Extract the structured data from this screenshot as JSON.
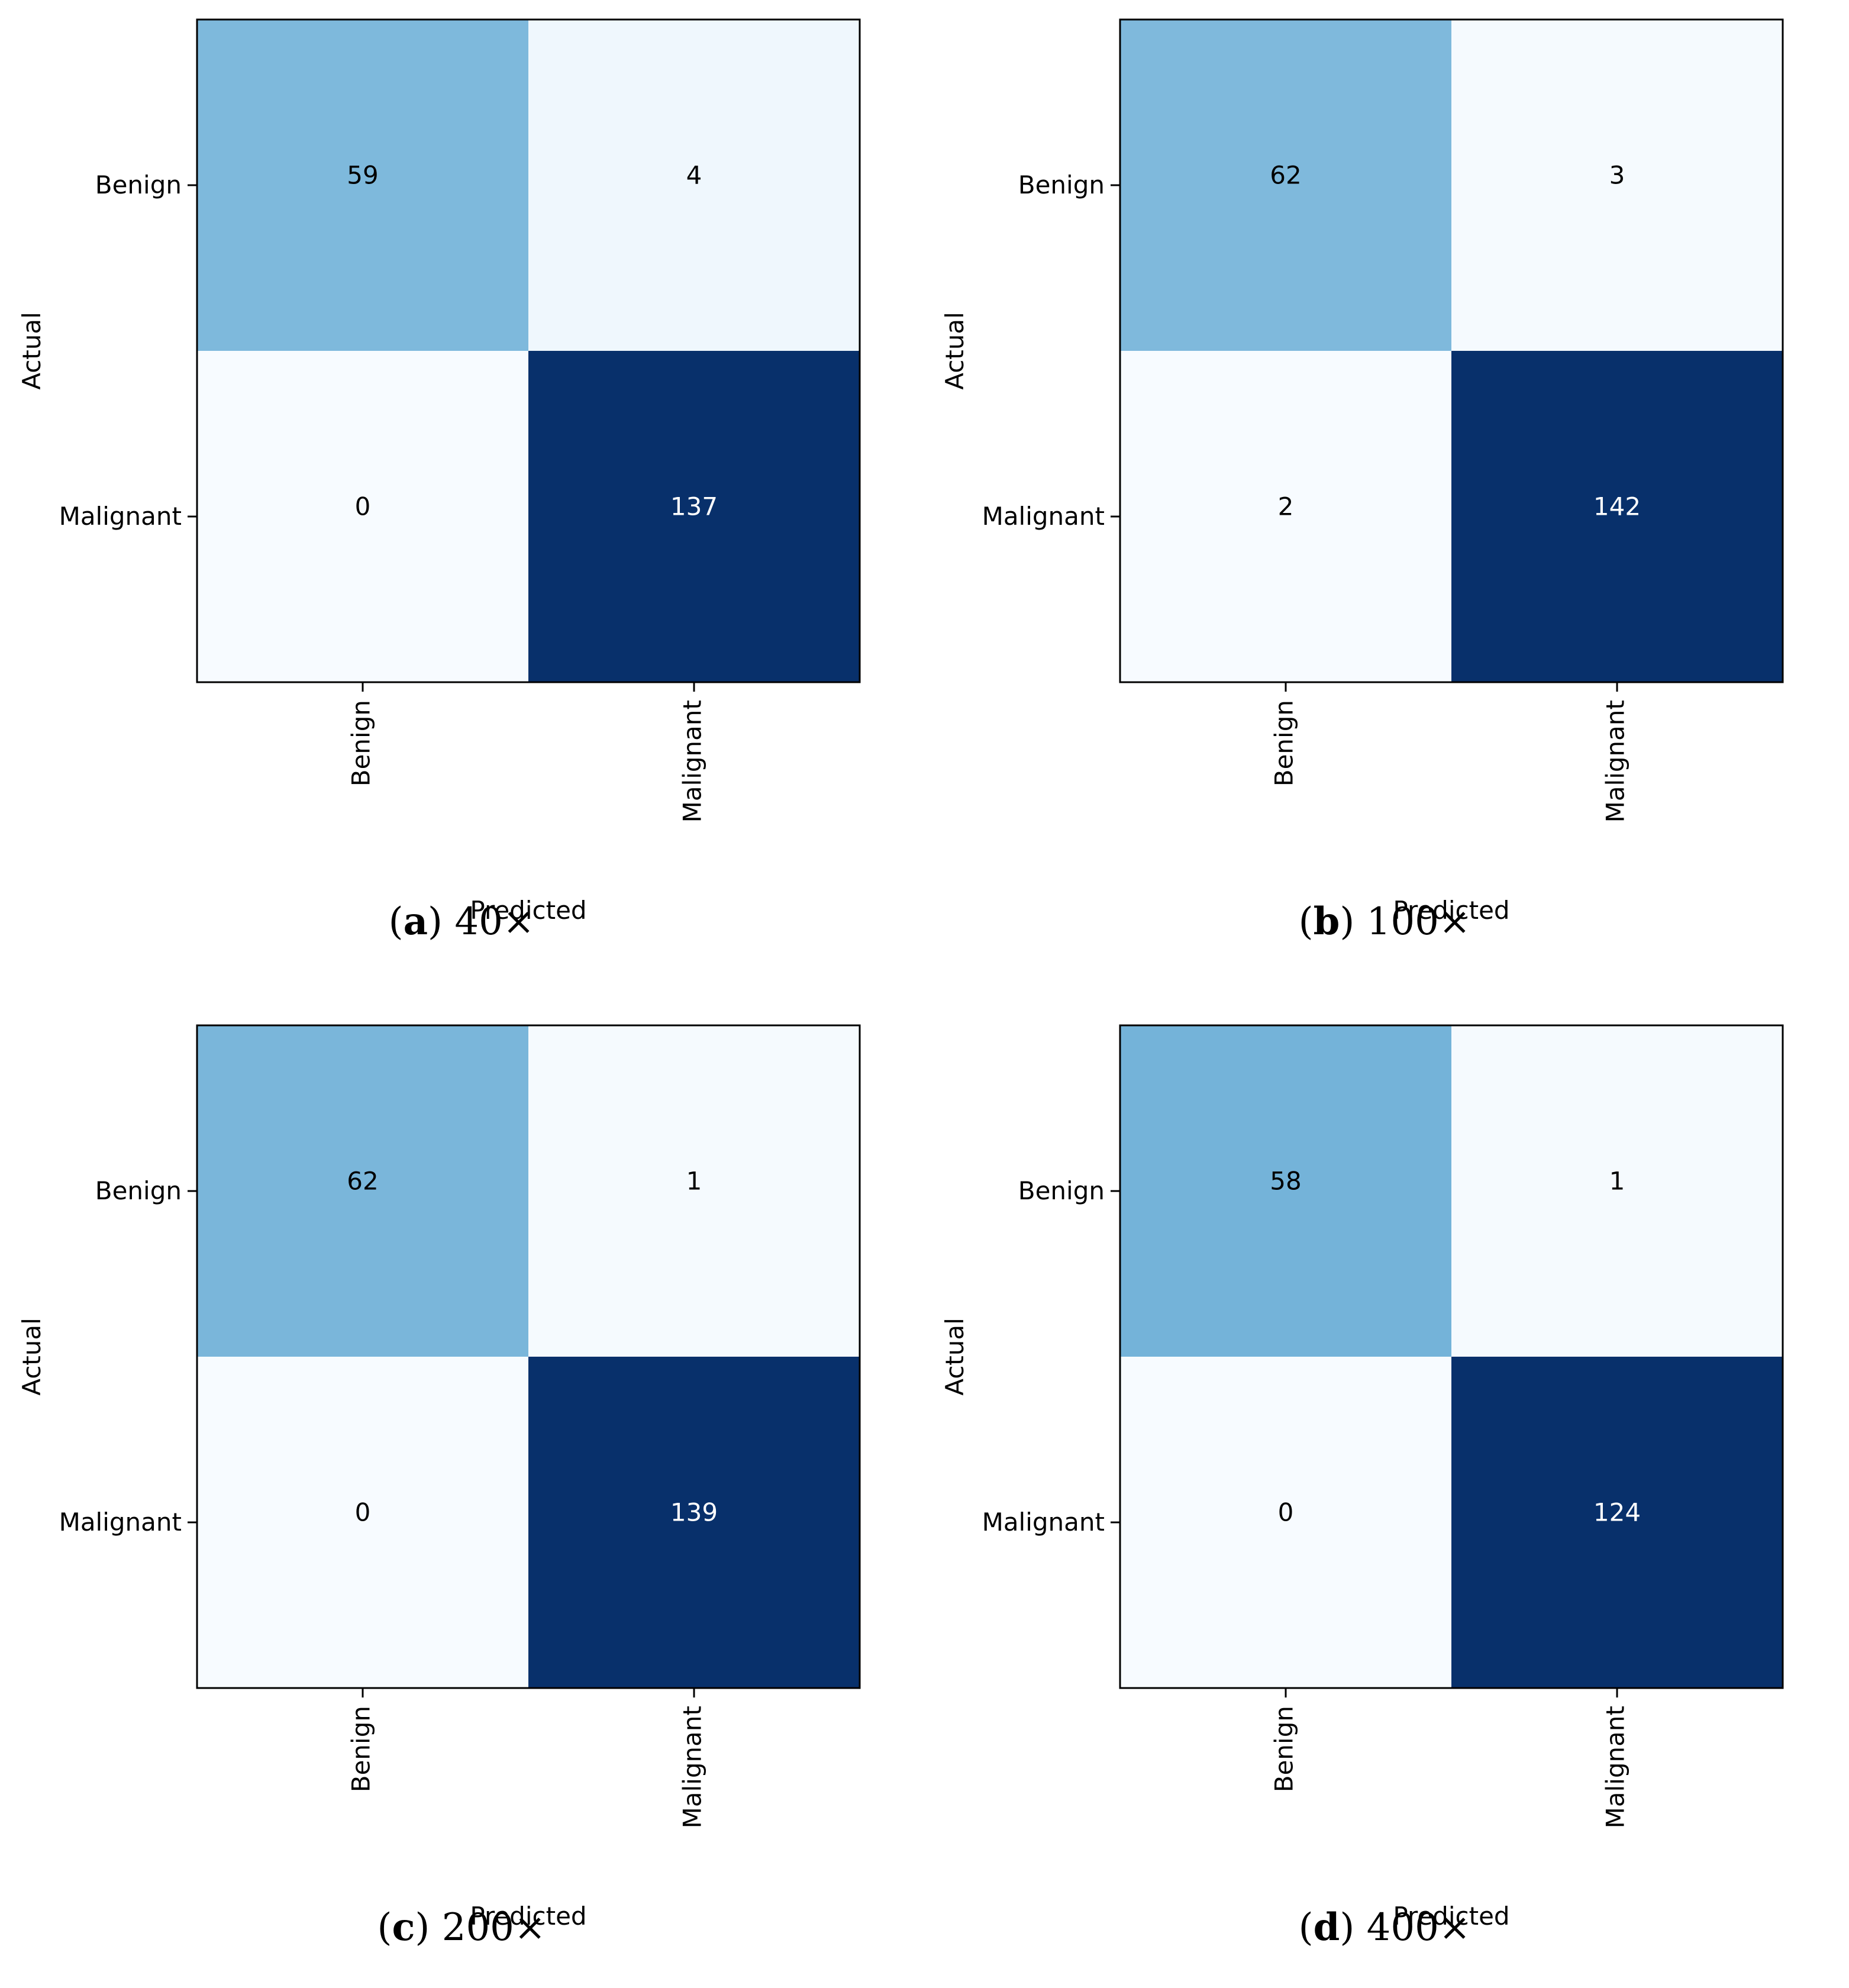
{
  "chart_data": [
    {
      "type": "heatmap",
      "caption": {
        "letter": "a",
        "text": "40×"
      },
      "xlabel": "Predicted",
      "ylabel": "Actual",
      "x_categories": [
        "Benign",
        "Malignant"
      ],
      "y_categories": [
        "Benign",
        "Malignant"
      ],
      "matrix": [
        [
          59,
          4
        ],
        [
          0,
          137
        ]
      ],
      "colormap": "Blues"
    },
    {
      "type": "heatmap",
      "caption": {
        "letter": "b",
        "text": "100×"
      },
      "xlabel": "Predicted",
      "ylabel": "Actual",
      "x_categories": [
        "Benign",
        "Malignant"
      ],
      "y_categories": [
        "Benign",
        "Malignant"
      ],
      "matrix": [
        [
          62,
          3
        ],
        [
          2,
          142
        ]
      ],
      "colormap": "Blues"
    },
    {
      "type": "heatmap",
      "caption": {
        "letter": "c",
        "text": "200×"
      },
      "xlabel": "Predicted",
      "ylabel": "Actual",
      "x_categories": [
        "Benign",
        "Malignant"
      ],
      "y_categories": [
        "Benign",
        "Malignant"
      ],
      "matrix": [
        [
          62,
          1
        ],
        [
          0,
          139
        ]
      ],
      "colormap": "Blues"
    },
    {
      "type": "heatmap",
      "caption": {
        "letter": "d",
        "text": "400×"
      },
      "xlabel": "Predicted",
      "ylabel": "Actual",
      "x_categories": [
        "Benign",
        "Malignant"
      ],
      "y_categories": [
        "Benign",
        "Malignant"
      ],
      "matrix": [
        [
          58,
          1
        ],
        [
          0,
          124
        ]
      ],
      "colormap": "Blues"
    }
  ],
  "colors": {
    "low": "#f7fbff",
    "mid": "#6baed6",
    "high": "#08306b",
    "text_dark": "#000000",
    "text_light": "#ffffff",
    "frame": "#000000"
  }
}
